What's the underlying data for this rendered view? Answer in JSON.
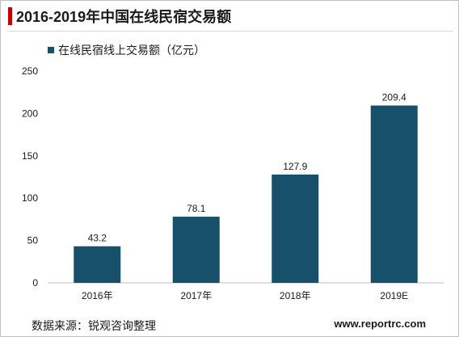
{
  "chart_data": {
    "type": "bar",
    "title": "2016-2019年中国在线民宿交易额",
    "categories": [
      "2016年",
      "2017年",
      "2018年",
      "2019E"
    ],
    "series": [
      {
        "name": "在线民宿线上交易额（亿元）",
        "values": [
          43.2,
          78.1,
          127.9,
          209.4
        ]
      }
    ],
    "value_labels": [
      "43.2",
      "78.1",
      "127.9",
      "209.4"
    ],
    "y_ticks": [
      "0",
      "50",
      "100",
      "150",
      "200",
      "250"
    ],
    "ylim": [
      0,
      250
    ],
    "xlabel": "",
    "ylabel": "",
    "grid": false,
    "legend_position": "top-left",
    "bar_color": "#16506b"
  },
  "footer": {
    "source": "数据来源：锐观咨询整理",
    "website": "www.reportrc.com"
  },
  "colors": {
    "title_accent": "#c00000",
    "axis": "#bfbfbf",
    "text": "#1a1a1a"
  }
}
